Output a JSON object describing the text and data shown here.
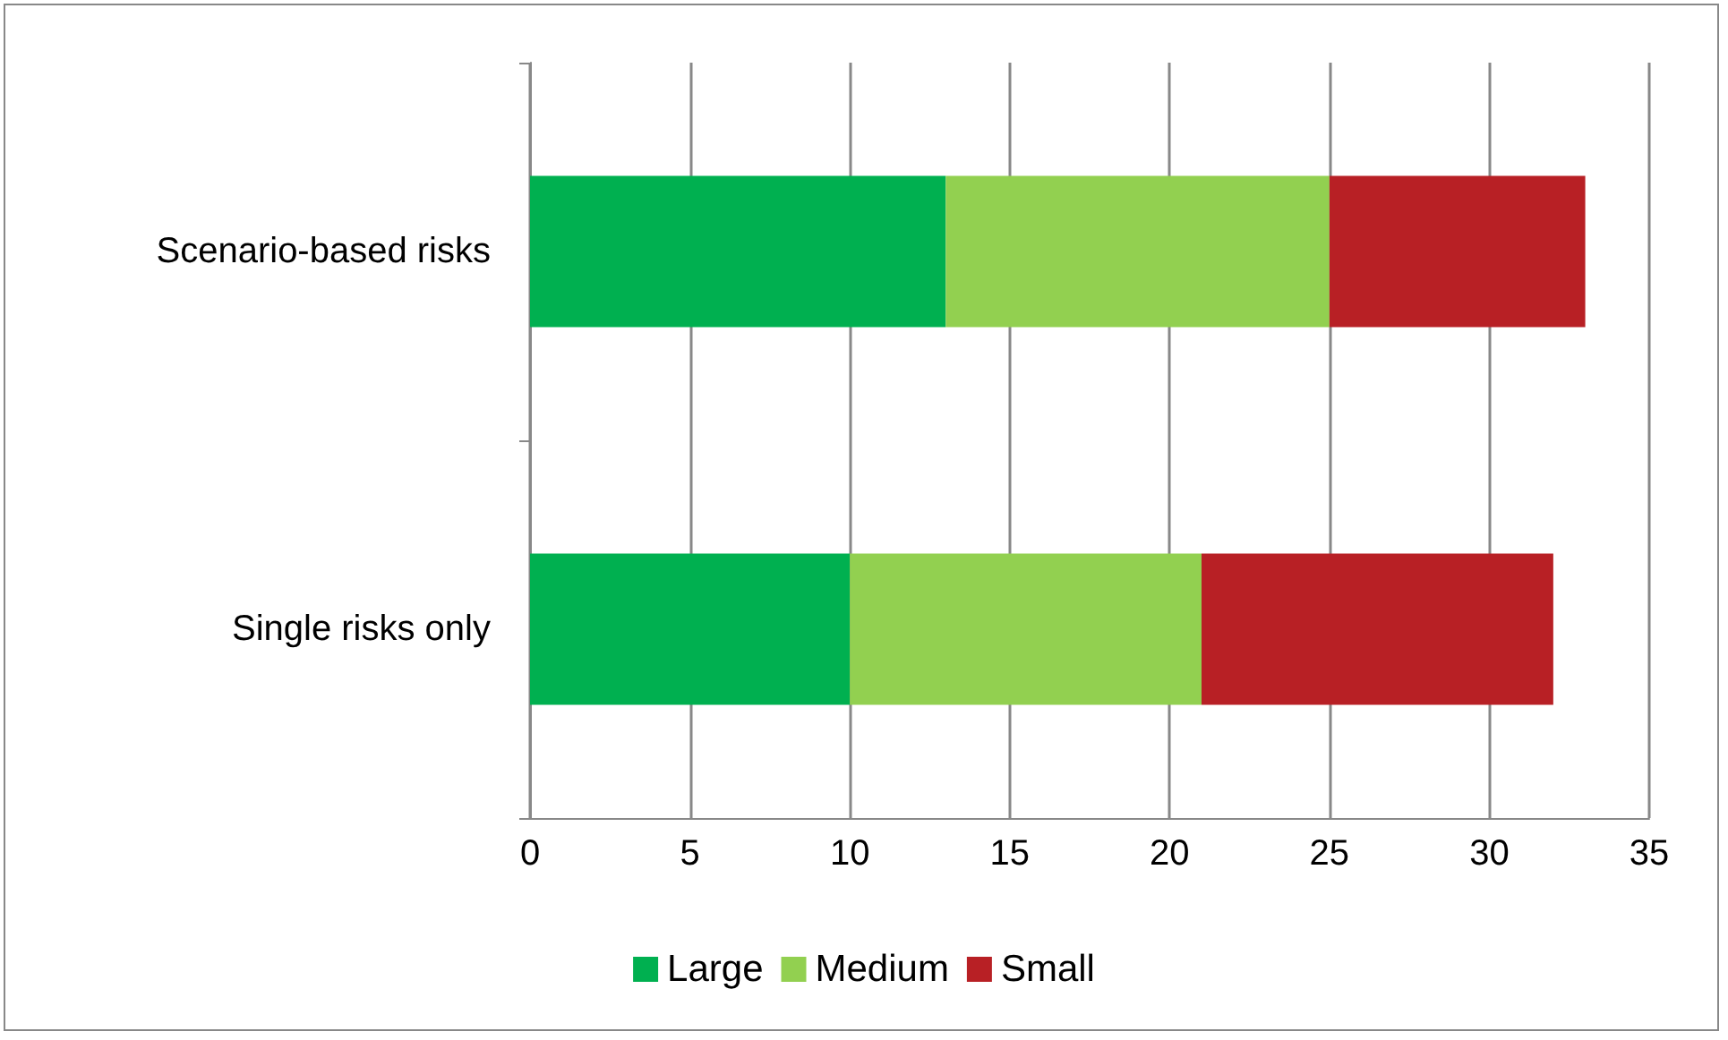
{
  "chart_data": {
    "type": "bar",
    "orientation": "horizontal",
    "stacked": true,
    "categories": [
      "Scenario-based risks",
      "Single risks only"
    ],
    "series": [
      {
        "name": "Large",
        "color": "#00b050",
        "values": [
          13,
          10
        ]
      },
      {
        "name": "Medium",
        "color": "#92d050",
        "values": [
          12,
          11
        ]
      },
      {
        "name": "Small",
        "color": "#b82025",
        "values": [
          8,
          11
        ]
      }
    ],
    "xlim": [
      0,
      35
    ],
    "xticks": [
      0,
      5,
      10,
      15,
      20,
      25,
      30,
      35
    ],
    "grid": "x",
    "legend": "bottom"
  }
}
